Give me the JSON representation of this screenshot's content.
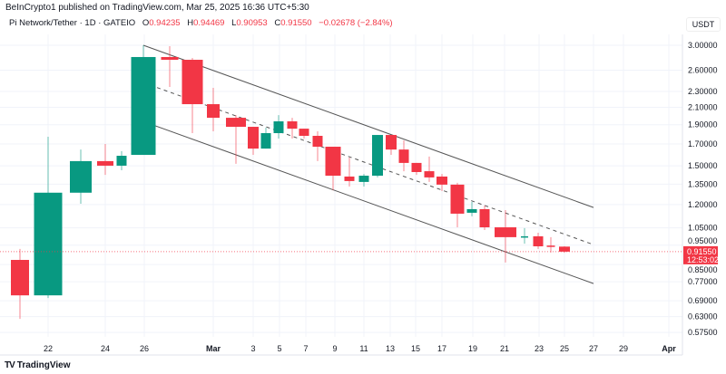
{
  "header": {
    "published": "BeInCrypto1 published on TradingView.com, Mar 25, 2025 16:36 UTC+5:30"
  },
  "legend": {
    "symbol": "Pi Network/Tether · 1D · GATEIO",
    "o_label": "O",
    "o": "0.94235",
    "h_label": "H",
    "h": "0.94469",
    "l_label": "L",
    "l": "0.90953",
    "c_label": "C",
    "c": "0.91550",
    "change": "−0.02678 (−2.84%)"
  },
  "currency": "USDT",
  "footer": {
    "brand": "TradingView"
  },
  "colors": {
    "up": "#089981",
    "down": "#f23645",
    "channel": "#555555",
    "grid": "#f0f3fa"
  },
  "chart_data": {
    "type": "candlestick",
    "y_scale": "log",
    "ylim": [
      0.55,
      3.1
    ],
    "grid": true,
    "y_ticks": [
      "3.00000",
      "2.60000",
      "2.30000",
      "2.10000",
      "1.90000",
      "1.70000",
      "1.50000",
      "1.35000",
      "1.20000",
      "1.05000",
      "0.95000",
      "0.85000",
      "0.77000",
      "0.69000",
      "0.63000",
      "0.57500"
    ],
    "x_ticks": [
      "22",
      "24",
      "26",
      "Mar",
      "3",
      "5",
      "7",
      "9",
      "11",
      "13",
      "15",
      "17",
      "19",
      "21",
      "23",
      "25",
      "27",
      "29",
      "Apr"
    ],
    "last_price": {
      "value": "0.91550",
      "countdown": "12:53:02"
    },
    "candles": [
      {
        "date": "2025-02-21",
        "o": 0.873,
        "h": 0.93,
        "l": 0.622,
        "c": 0.712
      },
      {
        "date": "2025-02-22",
        "o": 0.712,
        "h": 1.773,
        "l": 0.701,
        "c": 1.285
      },
      {
        "date": "2025-02-23",
        "o": 1.285,
        "h": 1.647,
        "l": 1.206,
        "c": 1.541
      },
      {
        "date": "2025-02-24",
        "o": 1.541,
        "h": 1.701,
        "l": 1.424,
        "c": 1.501
      },
      {
        "date": "2025-02-25",
        "o": 1.501,
        "h": 1.632,
        "l": 1.462,
        "c": 1.589
      },
      {
        "date": "2025-02-26",
        "o": 1.597,
        "h": 3.0,
        "l": 1.597,
        "c": 2.804
      },
      {
        "date": "2025-02-27",
        "o": 2.804,
        "h": 2.984,
        "l": 2.361,
        "c": 2.76
      },
      {
        "date": "2025-02-28",
        "o": 2.76,
        "h": 2.789,
        "l": 1.81,
        "c": 2.138
      },
      {
        "date": "2025-03-01",
        "o": 2.138,
        "h": 2.349,
        "l": 1.829,
        "c": 1.977
      },
      {
        "date": "2025-03-02",
        "o": 1.977,
        "h": 2.008,
        "l": 1.517,
        "c": 1.877
      },
      {
        "date": "2025-03-03",
        "o": 1.877,
        "h": 1.877,
        "l": 1.597,
        "c": 1.656
      },
      {
        "date": "2025-03-04",
        "o": 1.656,
        "h": 1.867,
        "l": 1.656,
        "c": 1.81
      },
      {
        "date": "2025-03-05",
        "o": 1.81,
        "h": 2.008,
        "l": 1.755,
        "c": 1.937
      },
      {
        "date": "2025-03-06",
        "o": 1.937,
        "h": 1.977,
        "l": 1.755,
        "c": 1.857
      },
      {
        "date": "2025-03-07",
        "o": 1.857,
        "h": 1.857,
        "l": 1.755,
        "c": 1.782
      },
      {
        "date": "2025-03-08",
        "o": 1.782,
        "h": 1.829,
        "l": 1.541,
        "c": 1.674
      },
      {
        "date": "2025-03-09",
        "o": 1.674,
        "h": 1.674,
        "l": 1.303,
        "c": 1.417
      },
      {
        "date": "2025-03-10",
        "o": 1.41,
        "h": 1.573,
        "l": 1.331,
        "c": 1.374
      },
      {
        "date": "2025-03-11",
        "o": 1.367,
        "h": 1.431,
        "l": 1.331,
        "c": 1.417
      },
      {
        "date": "2025-03-12",
        "o": 1.417,
        "h": 1.791,
        "l": 1.403,
        "c": 1.791
      },
      {
        "date": "2025-03-13",
        "o": 1.791,
        "h": 1.791,
        "l": 1.597,
        "c": 1.647
      },
      {
        "date": "2025-03-14",
        "o": 1.647,
        "h": 1.736,
        "l": 1.454,
        "c": 1.525
      },
      {
        "date": "2025-03-15",
        "o": 1.525,
        "h": 1.525,
        "l": 1.424,
        "c": 1.447
      },
      {
        "date": "2025-03-16",
        "o": 1.454,
        "h": 1.582,
        "l": 1.367,
        "c": 1.403
      },
      {
        "date": "2025-03-17",
        "o": 1.41,
        "h": 1.431,
        "l": 1.297,
        "c": 1.346
      },
      {
        "date": "2025-03-18",
        "o": 1.346,
        "h": 1.36,
        "l": 1.053,
        "c": 1.139
      },
      {
        "date": "2025-03-19",
        "o": 1.145,
        "h": 1.219,
        "l": 1.122,
        "c": 1.169
      },
      {
        "date": "2025-03-20",
        "o": 1.169,
        "h": 1.194,
        "l": 1.037,
        "c": 1.053
      },
      {
        "date": "2025-03-21",
        "o": 1.053,
        "h": 1.163,
        "l": 0.86,
        "c": 0.995
      },
      {
        "date": "2025-03-22",
        "o": 0.995,
        "h": 1.048,
        "l": 0.958,
        "c": 1.0
      },
      {
        "date": "2025-03-23",
        "o": 1.0,
        "h": 1.021,
        "l": 0.93,
        "c": 0.944
      },
      {
        "date": "2025-03-24",
        "o": 0.948,
        "h": 0.995,
        "l": 0.911,
        "c": 0.944
      },
      {
        "date": "2025-03-25",
        "o": 0.94235,
        "h": 0.94469,
        "l": 0.90953,
        "c": 0.9155
      }
    ],
    "trendlines": [
      {
        "role": "upper",
        "style": "solid",
        "from": [
          "2025-02-26",
          3.0
        ],
        "to": [
          "2025-03-27",
          1.18
        ]
      },
      {
        "role": "middle",
        "style": "dashed",
        "from": [
          "2025-02-26",
          2.42
        ],
        "to": [
          "2025-03-27",
          0.953
        ]
      },
      {
        "role": "lower",
        "style": "solid",
        "from": [
          "2025-02-26",
          1.935
        ],
        "to": [
          "2025-03-27",
          0.762
        ]
      }
    ]
  }
}
